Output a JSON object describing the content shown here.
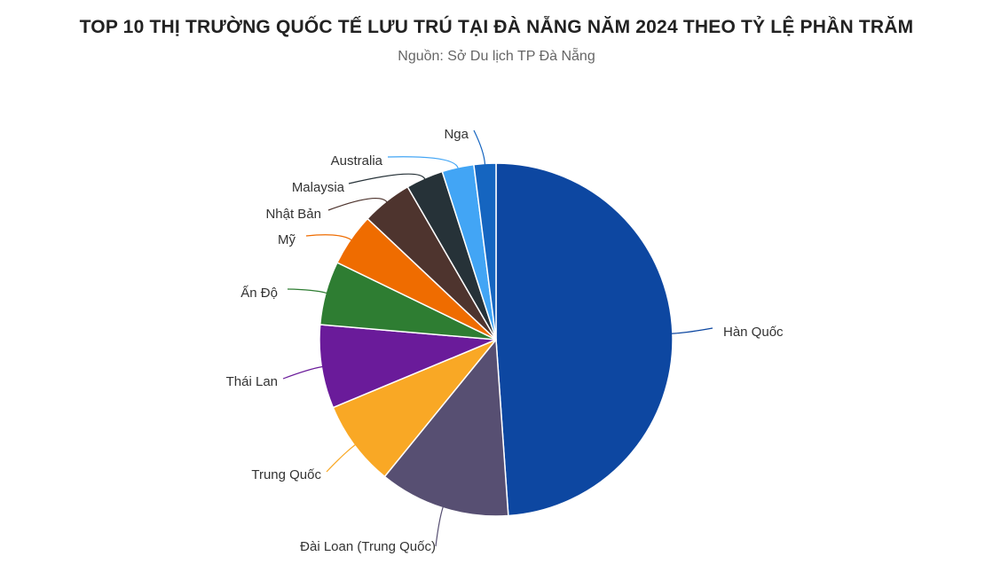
{
  "chart_data": {
    "type": "pie",
    "title": "TOP 10 THỊ TRƯỜNG QUỐC TẾ LƯU TRÚ TẠI ĐÀ NẴNG NĂM 2024 THEO TỶ LỆ PHẦN TRĂM",
    "subtitle": "Nguồn: Sở Du lịch TP Đà Nẵng",
    "slices": [
      {
        "label": "Hàn Quốc",
        "value": 48.6,
        "color": "#0d47a1"
      },
      {
        "label": "Đài Loan (Trung Quốc)",
        "value": 11.9,
        "color": "#574f72"
      },
      {
        "label": "Trung Quốc",
        "value": 7.8,
        "color": "#f9a825"
      },
      {
        "label": "Thái Lan",
        "value": 7.6,
        "color": "#6a1b9a"
      },
      {
        "label": "Ấn Độ",
        "value": 5.8,
        "color": "#2e7d32"
      },
      {
        "label": "Mỹ",
        "value": 4.8,
        "color": "#ef6c00"
      },
      {
        "label": "Nhật Bản",
        "value": 4.6,
        "color": "#4e342e"
      },
      {
        "label": "Malaysia",
        "value": 3.4,
        "color": "#263238"
      },
      {
        "label": "Australia",
        "value": 2.9,
        "color": "#42a5f5"
      },
      {
        "label": "Nga",
        "value": 2.0,
        "color": "#1565c0"
      }
    ],
    "legend": "none"
  }
}
